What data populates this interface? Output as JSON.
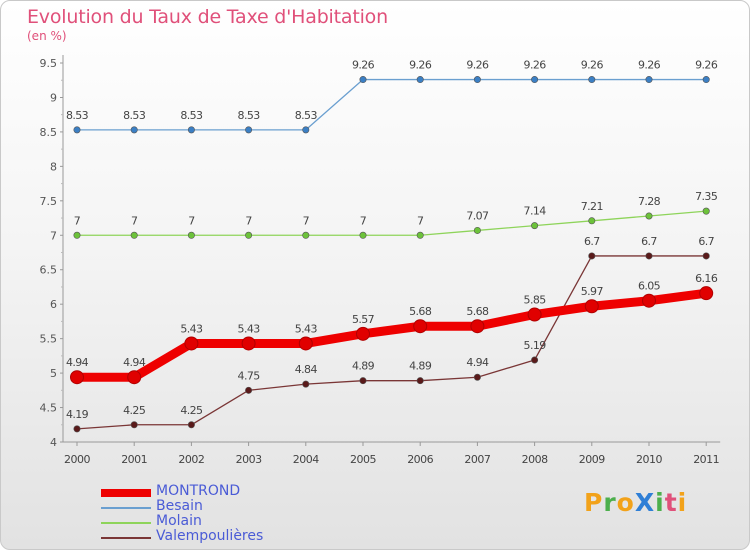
{
  "title": "Evolution du Taux de Taxe d'Habitation",
  "subtitle": "(en %)",
  "logo": {
    "text": "ProXiti",
    "letters": [
      {
        "ch": "P",
        "color": "#f2a21a"
      },
      {
        "ch": "r",
        "color": "#4caf4c"
      },
      {
        "ch": "o",
        "color": "#f2a21a"
      },
      {
        "ch": "X",
        "color": "#2f7fd6"
      },
      {
        "ch": "i",
        "color": "#4caf4c"
      },
      {
        "ch": "t",
        "color": "#e0507a"
      },
      {
        "ch": "i",
        "color": "#f2a21a"
      }
    ]
  },
  "chart_data": {
    "type": "line",
    "x": [
      "2000",
      "2001",
      "2002",
      "2003",
      "2004",
      "2005",
      "2006",
      "2007",
      "2008",
      "2009",
      "2010",
      "2011"
    ],
    "ylim": [
      4,
      9.5
    ],
    "yticks": [
      "4",
      "4.5",
      "5",
      "5.5",
      "6",
      "6.5",
      "7",
      "7.5",
      "8",
      "8.5",
      "9",
      "9.5"
    ],
    "grid": false,
    "legend_position": "bottom-left",
    "series": [
      {
        "name": "MONTROND",
        "color": "#ee0000",
        "marker_color": "#dd0000",
        "values": [
          4.94,
          4.94,
          5.43,
          5.43,
          5.43,
          5.57,
          5.68,
          5.68,
          5.85,
          5.97,
          6.05,
          6.16
        ],
        "labels": [
          "4.94",
          "4.94",
          "5.43",
          "5.43",
          "5.43",
          "5.57",
          "5.68",
          "5.68",
          "5.85",
          "5.97",
          "6.05",
          "6.16"
        ]
      },
      {
        "name": "Besain",
        "color": "#6a9fd0",
        "marker_color": "#3b7fc4",
        "values": [
          8.53,
          8.53,
          8.53,
          8.53,
          8.53,
          9.26,
          9.26,
          9.26,
          9.26,
          9.26,
          9.26,
          9.26
        ],
        "labels": [
          "8.53",
          "8.53",
          "8.53",
          "8.53",
          "8.53",
          "9.26",
          "9.26",
          "9.26",
          "9.26",
          "9.26",
          "9.26",
          "9.26"
        ]
      },
      {
        "name": "Molain",
        "color": "#8ed45a",
        "marker_color": "#6cc23a",
        "values": [
          7,
          7,
          7,
          7,
          7,
          7,
          7,
          7.07,
          7.14,
          7.21,
          7.28,
          7.35
        ],
        "labels": [
          "7",
          "7",
          "7",
          "7",
          "7",
          "7",
          "7",
          "7.07",
          "7.14",
          "7.21",
          "7.28",
          "7.35"
        ]
      },
      {
        "name": "Valempoulières",
        "color": "#7a3636",
        "marker_color": "#5a1a1a",
        "values": [
          4.19,
          4.25,
          4.25,
          4.75,
          4.84,
          4.89,
          4.89,
          4.94,
          5.19,
          6.7,
          6.7,
          6.7
        ],
        "labels": [
          "4.19",
          "4.25",
          "4.25",
          "4.75",
          "4.84",
          "4.89",
          "4.89",
          "4.94",
          "5.19",
          "6.7",
          "6.7",
          "6.7"
        ]
      }
    ]
  }
}
